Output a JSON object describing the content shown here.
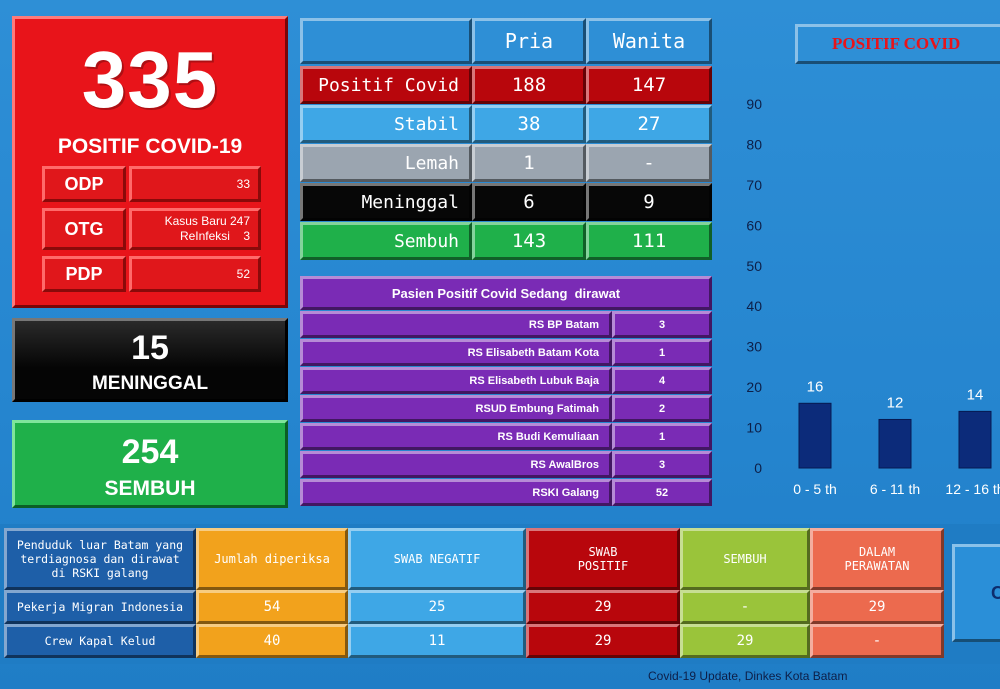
{
  "colors": {
    "background": "#2585cf",
    "red": "#e8141a",
    "black": "#0a0a0a",
    "green": "#1fb04a",
    "purple": "#7a2bb5",
    "light_blue": "#3ea7e6",
    "gray": "#9ba5b0",
    "dark_red": "#b8060c",
    "orange": "#f2a21c",
    "lime": "#9ac43a",
    "salmon": "#ec6a4e",
    "bar": "#0c2b7a"
  },
  "summary": {
    "positif_count": "335",
    "positif_label": "POSITIF COVID-19",
    "odp_label": "ODP",
    "odp_value": "33",
    "otg_label": "OTG",
    "otg_kasus_baru_label": "Kasus Baru",
    "otg_kasus_baru_value": "247",
    "otg_reinfeksi_label": "ReInfeksi",
    "otg_reinfeksi_value": "3",
    "pdp_label": "PDP",
    "pdp_value": "52",
    "meninggal_count": "15",
    "meninggal_label": "MENINGGAL",
    "sembuh_count": "254",
    "sembuh_label": "SEMBUH"
  },
  "gender_table": {
    "header_pria": "Pria",
    "header_wanita": "Wanita",
    "rows": [
      {
        "label": "Positif Covid",
        "pria": "188",
        "wanita": "147"
      },
      {
        "label": "Stabil",
        "pria": "38",
        "wanita": "27"
      },
      {
        "label": "Lemah",
        "pria": "1",
        "wanita": "-"
      },
      {
        "label": "Meninggal",
        "pria": "6",
        "wanita": "9"
      },
      {
        "label": "Sembuh",
        "pria": "143",
        "wanita": "111"
      }
    ]
  },
  "hospital_table": {
    "title": "Pasien Positif Covid Sedang  dirawat",
    "rows": [
      {
        "name": "RS BP Batam",
        "value": "3"
      },
      {
        "name": "RS Elisabeth Batam Kota",
        "value": "1"
      },
      {
        "name": "RS Elisabeth Lubuk Baja",
        "value": "4"
      },
      {
        "name": "RSUD Embung Fatimah",
        "value": "2"
      },
      {
        "name": "RS Budi Kemuliaan",
        "value": "1"
      },
      {
        "name": "RS AwalBros",
        "value": "3"
      },
      {
        "name": "RSKI Galang",
        "value": "52"
      }
    ]
  },
  "chart_banner": "POSITIF COVID",
  "chart_data": {
    "type": "bar",
    "categories": [
      "0 - 5 th",
      "6 - 11 th",
      "12 - 16 th"
    ],
    "values": [
      16,
      12,
      14
    ],
    "ylim": [
      0,
      90
    ],
    "yticks": [
      0,
      10,
      20,
      30,
      40,
      50,
      60,
      70,
      80,
      90
    ],
    "grid": false
  },
  "bottom_table": {
    "desc": "Penduduk luar Batam yang terdiagnosa dan dirawat di RSKI galang",
    "headers": {
      "diperiksa": "Jumlah diperiksa",
      "negatif": "SWAB NEGATIF",
      "positif_line1": "SWAB",
      "positif_line2": "POSITIF",
      "sembuh": "SEMBUH",
      "perawatan_line1": "DALAM",
      "perawatan_line2": "PERAWATAN"
    },
    "rows": [
      {
        "label": "Pekerja Migran Indonesia",
        "diperiksa": "54",
        "negatif": "25",
        "positif": "29",
        "sembuh": "-",
        "perawatan": "29"
      },
      {
        "label": "Crew Kapal Kelud",
        "diperiksa": "40",
        "negatif": "11",
        "positif": "29",
        "sembuh": "29",
        "perawatan": "-"
      }
    ],
    "cut_button_text": "C"
  },
  "footer": "Covid-19 Update, Dinkes Kota Batam"
}
